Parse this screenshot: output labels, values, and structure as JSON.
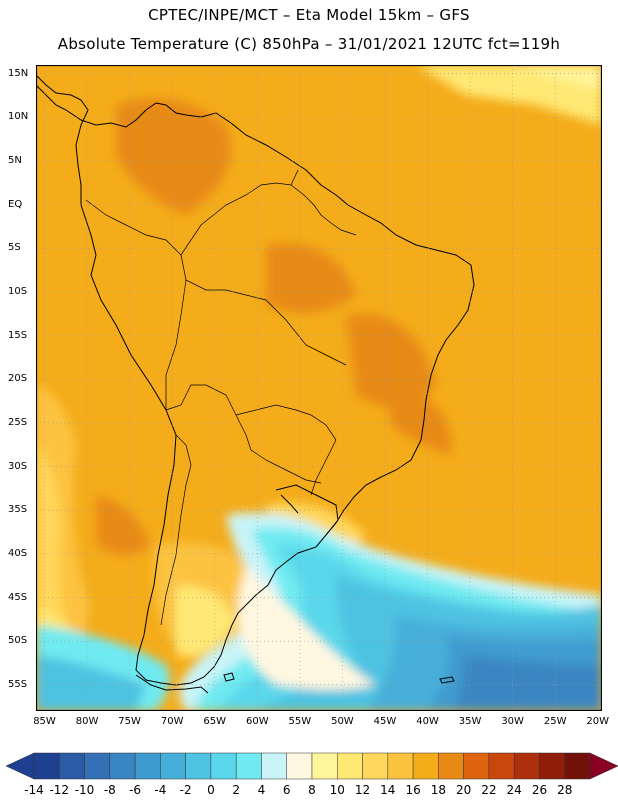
{
  "header": {
    "line1": "CPTEC/INPE/MCT –  Eta Model 15km – GFS",
    "line2": "Absolute Temperature (C) 850hPa – 31/01/2021 12UTC fct=119h"
  },
  "map": {
    "lat_labels": [
      "15N",
      "10N",
      "5N",
      "EQ",
      "5S",
      "10S",
      "15S",
      "20S",
      "25S",
      "30S",
      "35S",
      "40S",
      "45S",
      "50S",
      "55S"
    ],
    "lon_labels": [
      "85W",
      "80W",
      "75W",
      "70W",
      "65W",
      "60W",
      "55W",
      "50W",
      "45W",
      "40W",
      "35W",
      "30W",
      "25W",
      "20W"
    ],
    "lat_range": [
      -58,
      16
    ],
    "lon_range": [
      -86,
      -19.5
    ],
    "grid": "dotted"
  },
  "colorbar": {
    "labels": [
      "-14",
      "-12",
      "-10",
      "-8",
      "-6",
      "-4",
      "-2",
      "0",
      "2",
      "4",
      "6",
      "8",
      "10",
      "12",
      "14",
      "16",
      "18",
      "20",
      "22",
      "24",
      "26",
      "28"
    ],
    "colors": [
      "#1f3f91",
      "#2b5aa6",
      "#3370b5",
      "#3a86c2",
      "#3f9bcf",
      "#46afd9",
      "#4ec3e2",
      "#5ad7eb",
      "#6feaf1",
      "#c9f4f8",
      "#fff7e0",
      "#fff59a",
      "#ffe873",
      "#ffd75a",
      "#fcc33f",
      "#f4ac1a",
      "#e88a13",
      "#df6410",
      "#c9470d",
      "#ad2f0b",
      "#8e1d0a",
      "#73100a"
    ]
  }
}
